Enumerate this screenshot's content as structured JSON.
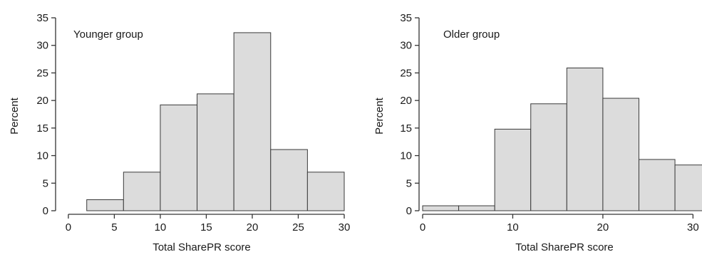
{
  "chart_data": [
    {
      "type": "bar",
      "title": "Younger group",
      "xlabel": "Total SharePR score",
      "ylabel": "Percent",
      "xlim": [
        -1,
        30
      ],
      "ylim": [
        0,
        35
      ],
      "xticks": [
        0,
        5,
        10,
        15,
        20,
        25,
        30
      ],
      "yticks": [
        0,
        5,
        10,
        15,
        20,
        25,
        30,
        35
      ],
      "bin_width": 4,
      "bins": [
        {
          "start": 2,
          "end": 6,
          "value": 2
        },
        {
          "start": 6,
          "end": 10,
          "value": 7
        },
        {
          "start": 10,
          "end": 14,
          "value": 19.2
        },
        {
          "start": 14,
          "end": 18,
          "value": 21.2
        },
        {
          "start": 18,
          "end": 22,
          "value": 32.3
        },
        {
          "start": 22,
          "end": 26,
          "value": 11.1
        },
        {
          "start": 26,
          "end": 30,
          "value": 7
        }
      ],
      "grid": false
    },
    {
      "type": "bar",
      "title": "Older group",
      "xlabel": "Total SharePR score",
      "ylabel": "Percent",
      "xlim": [
        0,
        31
      ],
      "ylim": [
        0,
        35
      ],
      "xticks": [
        0,
        10,
        20,
        30
      ],
      "yticks": [
        0,
        5,
        10,
        15,
        20,
        25,
        30,
        35
      ],
      "bin_width": 4,
      "bins": [
        {
          "start": 0,
          "end": 4,
          "value": 0.9
        },
        {
          "start": 4,
          "end": 8,
          "value": 0.9
        },
        {
          "start": 8,
          "end": 12,
          "value": 14.8
        },
        {
          "start": 12,
          "end": 16,
          "value": 19.4
        },
        {
          "start": 16,
          "end": 20,
          "value": 25.9
        },
        {
          "start": 20,
          "end": 24,
          "value": 20.4
        },
        {
          "start": 24,
          "end": 28,
          "value": 9.3
        },
        {
          "start": 28,
          "end": 32,
          "value": 8.3
        }
      ],
      "grid": false
    }
  ],
  "colors": {
    "bar_fill": "#dcdcdc",
    "bar_stroke": "#3a3a3a",
    "axis": "#333333",
    "text": "#1a1a1a"
  }
}
